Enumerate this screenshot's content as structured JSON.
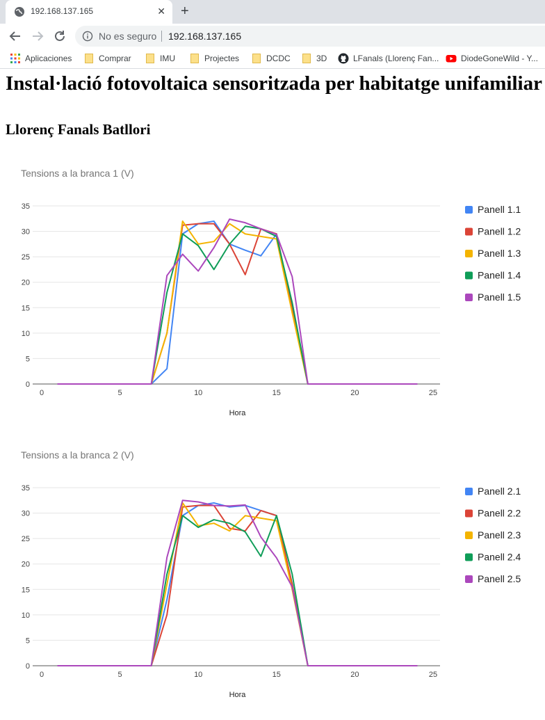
{
  "browser": {
    "tab_title": "192.168.137.165",
    "tab_close": "✕",
    "new_tab": "+",
    "security_text": "No es seguro",
    "url": "192.168.137.165"
  },
  "bookmarks": [
    {
      "label": "Aplicaciones",
      "icon": "apps-grid-icon"
    },
    {
      "label": "Comprar",
      "icon": "folder-icon"
    },
    {
      "label": "IMU",
      "icon": "folder-icon"
    },
    {
      "label": "Projectes",
      "icon": "folder-icon"
    },
    {
      "label": "DCDC",
      "icon": "folder-icon"
    },
    {
      "label": "3D",
      "icon": "folder-icon"
    },
    {
      "label": "LFanals (Llorenç Fan...",
      "icon": "github-icon"
    },
    {
      "label": "DiodeGoneWild - Y...",
      "icon": "youtube-icon"
    }
  ],
  "page": {
    "title": "Instal·lació fotovoltaica sensoritzada per habitatge unifamiliar",
    "subtitle": "Llorenç Fanals Batllori"
  },
  "colors": {
    "series": [
      "#4285f4",
      "#db4437",
      "#f4b400",
      "#0f9d58",
      "#ab47bc"
    ],
    "grid": "#e5e5e5",
    "axis": "#757575"
  },
  "chart_data": [
    {
      "type": "line",
      "title": "Tensions a la branca 1 (V)",
      "xlabel": "Hora",
      "ylabel": "",
      "xlim": [
        0,
        25
      ],
      "ylim": [
        0,
        35
      ],
      "xticks": [
        0,
        5,
        10,
        15,
        20,
        25
      ],
      "yticks": [
        0,
        5,
        10,
        15,
        20,
        25,
        30,
        35
      ],
      "grid": true,
      "legend": "right",
      "x": [
        1,
        2,
        3,
        4,
        5,
        6,
        7,
        8,
        9,
        10,
        11,
        12,
        13,
        14,
        15,
        16,
        17,
        18,
        19,
        20,
        21,
        22,
        23,
        24
      ],
      "series": [
        {
          "name": "Panell 1.1",
          "values": [
            0,
            0,
            0,
            0,
            0,
            0,
            0,
            3,
            29.5,
            31.5,
            32,
            27.5,
            26.3,
            25.2,
            29.5,
            15,
            0,
            0,
            0,
            0,
            0,
            0,
            0,
            0
          ]
        },
        {
          "name": "Panell 1.2",
          "values": [
            0,
            0,
            0,
            0,
            0,
            0,
            0,
            10,
            31.2,
            31.5,
            31.5,
            27.5,
            21.5,
            30.5,
            29.5,
            15,
            0,
            0,
            0,
            0,
            0,
            0,
            0,
            0
          ]
        },
        {
          "name": "Panell 1.3",
          "values": [
            0,
            0,
            0,
            0,
            0,
            0,
            0,
            10,
            32,
            27.5,
            28,
            31.5,
            29.5,
            29,
            28.5,
            14,
            0,
            0,
            0,
            0,
            0,
            0,
            0,
            0
          ]
        },
        {
          "name": "Panell 1.4",
          "values": [
            0,
            0,
            0,
            0,
            0,
            0,
            0,
            18,
            29.5,
            27.2,
            22.5,
            27.5,
            31,
            30.5,
            29,
            16,
            0,
            0,
            0,
            0,
            0,
            0,
            0,
            0
          ]
        },
        {
          "name": "Panell 1.5",
          "values": [
            0,
            0,
            0,
            0,
            0,
            0,
            0,
            21.3,
            25.5,
            22.2,
            26.8,
            32.4,
            31.7,
            30.5,
            29.4,
            21.1,
            0,
            0,
            0,
            0,
            0,
            0,
            0,
            0
          ]
        }
      ]
    },
    {
      "type": "line",
      "title": "Tensions a la branca 2 (V)",
      "xlabel": "Hora",
      "ylabel": "",
      "xlim": [
        0,
        25
      ],
      "ylim": [
        0,
        35
      ],
      "xticks": [
        0,
        5,
        10,
        15,
        20,
        25
      ],
      "yticks": [
        0,
        5,
        10,
        15,
        20,
        25,
        30,
        35
      ],
      "grid": true,
      "legend": "right",
      "x": [
        1,
        2,
        3,
        4,
        5,
        6,
        7,
        8,
        9,
        10,
        11,
        12,
        13,
        14,
        15,
        16,
        17,
        18,
        19,
        20,
        21,
        22,
        23,
        24
      ],
      "series": [
        {
          "name": "Panell 2.1",
          "values": [
            0,
            0,
            0,
            0,
            0,
            0,
            0,
            13,
            29.5,
            31.5,
            32,
            31.2,
            31.5,
            30.5,
            29.5,
            16,
            0,
            0,
            0,
            0,
            0,
            0,
            0,
            0
          ]
        },
        {
          "name": "Panell 2.2",
          "values": [
            0,
            0,
            0,
            0,
            0,
            0,
            0,
            10,
            31.2,
            31.5,
            31.5,
            27,
            26.5,
            30.5,
            29.5,
            16,
            0,
            0,
            0,
            0,
            0,
            0,
            0,
            0
          ]
        },
        {
          "name": "Panell 2.3",
          "values": [
            0,
            0,
            0,
            0,
            0,
            0,
            0,
            16,
            32,
            27.5,
            28,
            26.5,
            29.5,
            29,
            28.5,
            15,
            0,
            0,
            0,
            0,
            0,
            0,
            0,
            0
          ]
        },
        {
          "name": "Panell 2.4",
          "values": [
            0,
            0,
            0,
            0,
            0,
            0,
            0,
            18,
            29.5,
            27.2,
            28.7,
            28,
            26.3,
            21.5,
            29.5,
            18,
            0,
            0,
            0,
            0,
            0,
            0,
            0,
            0
          ]
        },
        {
          "name": "Panell 2.5",
          "values": [
            0,
            0,
            0,
            0,
            0,
            0,
            0,
            21.3,
            32.5,
            32.2,
            31.5,
            31.4,
            31.6,
            25.3,
            21.2,
            15.5,
            0,
            0,
            0,
            0,
            0,
            0,
            0,
            0
          ]
        }
      ]
    }
  ]
}
